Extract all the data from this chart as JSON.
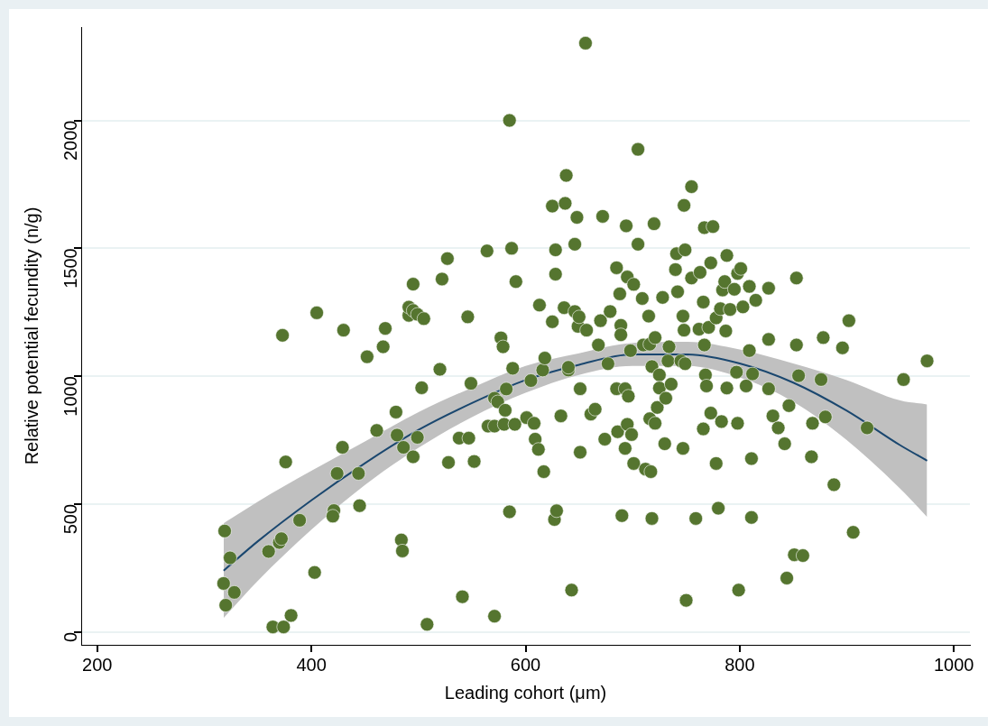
{
  "chart_data": {
    "type": "scatter",
    "xlabel": "Leading cohort (μm)",
    "ylabel": "Relative potential fecundity (n/g)",
    "xlim": [
      185,
      1015
    ],
    "ylim": [
      -50,
      2365
    ],
    "xticks": [
      200,
      400,
      600,
      800,
      1000
    ],
    "yticks": [
      0,
      500,
      1000,
      1500,
      2000
    ],
    "grid": "y",
    "series": [
      {
        "color": "#55752f",
        "marker": "circle",
        "x": [
          319,
          318,
          320,
          324,
          328,
          360,
          364,
          374,
          370,
          372,
          373,
          376,
          381,
          389,
          403,
          405,
          421,
          420,
          424,
          429,
          430,
          445,
          444,
          452,
          461,
          467,
          469,
          479,
          480,
          484,
          485,
          486,
          491,
          491,
          495,
          495,
          495,
          499,
          499,
          503,
          505,
          508,
          520,
          522,
          527,
          528,
          538,
          541,
          547,
          546,
          549,
          552,
          564,
          565,
          571,
          571,
          574,
          571,
          577,
          579,
          580,
          581,
          582,
          585,
          585,
          587,
          588,
          590,
          591,
          601,
          605,
          608,
          609,
          612,
          613,
          616,
          617,
          618,
          625,
          625,
          627,
          628,
          628,
          629,
          633,
          636,
          637,
          638,
          640,
          640,
          643,
          646,
          646,
          648,
          649,
          650,
          651,
          651,
          656,
          657,
          661,
          665,
          668,
          670,
          672,
          674,
          677,
          679,
          685,
          686,
          689,
          689,
          685,
          688,
          690,
          695,
          694,
          693,
          693,
          695,
          696,
          698,
          699,
          701,
          701,
          705,
          705,
          709,
          710,
          712,
          715,
          716,
          716,
          717,
          718,
          718,
          720,
          721,
          721,
          723,
          725,
          725,
          728,
          730,
          733,
          731,
          736,
          734,
          740,
          741,
          742,
          745,
          750,
          747,
          747,
          748,
          748,
          749,
          749,
          755,
          755,
          759,
          762,
          763,
          766,
          766,
          767,
          767,
          768,
          769,
          771,
          773,
          773,
          775,
          778,
          778,
          780,
          782,
          783,
          784,
          786,
          787,
          788,
          788,
          791,
          795,
          798,
          797,
          798,
          799,
          801,
          803,
          806,
          809,
          809,
          811,
          811,
          815,
          812,
          827,
          827,
          827,
          831,
          836,
          842,
          846,
          844,
          851,
          853,
          853,
          855,
          859,
          867,
          868,
          876,
          878,
          880,
          888,
          896,
          902,
          906,
          919,
          953,
          975
        ],
        "values": [
          395,
          190,
          105,
          290,
          155,
          315,
          20,
          20,
          350,
          365,
          1160,
          665,
          65,
          437,
          233,
          1248,
          475,
          453,
          620,
          722,
          1180,
          494,
          620,
          1076,
          788,
          1115,
          1187,
          860,
          770,
          360,
          317,
          722,
          1238,
          1270,
          1257,
          1360,
          685,
          1242,
          761,
          955,
          1225,
          30,
          1027,
          1380,
          1460,
          663,
          758,
          138,
          758,
          1232,
          972,
          667,
          1490,
          805,
          914,
          62,
          900,
          805,
          1150,
          1115,
          812,
          867,
          950,
          2000,
          470,
          1500,
          1031,
          812,
          1370,
          838,
          983,
          816,
          754,
          714,
          1278,
          1024,
          627,
          1071,
          1213,
          1665,
          440,
          1399,
          1494,
          474,
          845,
          1268,
          1676,
          1785,
          1024,
          1035,
          164,
          1253,
          1516,
          1621,
          1195,
          1232,
          951,
          703,
          2302,
          1180,
          852,
          871,
          1122,
          1217,
          1625,
          754,
          1049,
          1253,
          951,
          783,
          1199,
          1162,
          1424,
          1322,
          455,
          1388,
          1588,
          951,
          718,
          812,
          922,
          1100,
          772,
          659,
          1359,
          1887,
          1516,
          1304,
          1122,
          637,
          1235,
          1125,
          834,
          627,
          444,
          1038,
          1596,
          1151,
          816,
          878,
          1005,
          954,
          1308,
          736,
          1060,
          914,
          969,
          1115,
          1417,
          1479,
          1330,
          1060,
          124,
          718,
          1235,
          1180,
          1668,
          1494,
          1049,
          1741,
          1384,
          444,
          1184,
          1406,
          794,
          1290,
          1581,
          1122,
          1005,
          962,
          1191,
          856,
          1443,
          1585,
          659,
          1228,
          484,
          1264,
          823,
          1337,
          1370,
          1177,
          954,
          1472,
          1261,
          1340,
          1402,
          1016,
          816,
          164,
          1421,
          1271,
          962,
          1351,
          1100,
          678,
          448,
          1297,
          1009,
          1344,
          1144,
          951,
          845,
          798,
          736,
          885,
          211,
          302,
          1384,
          1122,
          1002,
          299,
          685,
          816,
          987,
          1151,
          841,
          576,
          1111,
          1217,
          390,
          798,
          987,
          1060
        ]
      },
      {
        "type": "line",
        "color": "#1a476f",
        "marker": "none",
        "x": [
          318,
          350,
          400,
          450,
          500,
          550,
          600,
          650,
          700,
          750,
          800,
          850,
          900,
          950,
          975
        ],
        "values": [
          240,
          355,
          515,
          660,
          790,
          895,
          985,
          1045,
          1085,
          1085,
          1050,
          975,
          865,
          730,
          670
        ],
        "lower": [
          55,
          200,
          400,
          575,
          720,
          840,
          935,
          1005,
          1040,
          1040,
          995,
          900,
          750,
          560,
          450
        ],
        "upper": [
          425,
          510,
          630,
          745,
          860,
          955,
          1040,
          1090,
          1130,
          1135,
          1105,
          1050,
          985,
          905,
          890
        ]
      }
    ]
  }
}
